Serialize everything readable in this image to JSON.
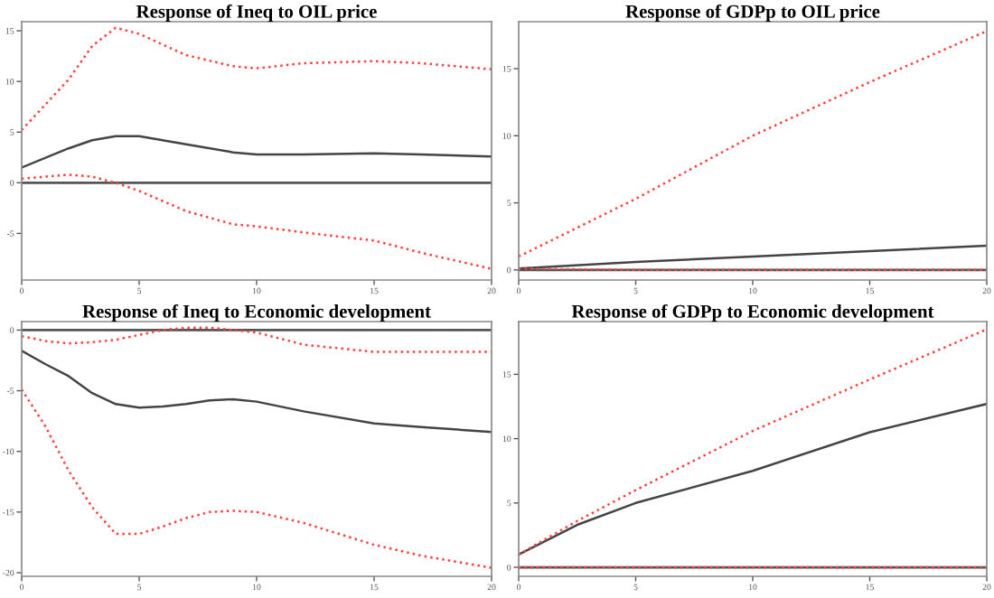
{
  "chart_data": [
    {
      "type": "line",
      "title": "Response of Ineq to OIL price",
      "x": [
        0,
        2,
        3,
        4,
        5,
        7,
        9,
        10,
        12,
        15,
        17,
        20
      ],
      "xlim": [
        0,
        20
      ],
      "xticks": [
        0,
        5,
        10,
        15,
        20
      ],
      "ylim": [
        -9.6,
        15.9
      ],
      "yticks": [
        -5,
        0,
        5,
        10,
        15
      ],
      "grid": false,
      "ref_lines": [
        {
          "axis": "y",
          "value": 0,
          "color": "#555555"
        }
      ],
      "series": [
        {
          "color": "#444444",
          "line_style": "solid",
          "values": [
            1.5,
            3.4,
            4.2,
            4.6,
            4.6,
            3.8,
            3.0,
            2.8,
            2.8,
            2.9,
            2.8,
            2.6
          ]
        },
        {
          "color": "#ff4040",
          "line_style": "dotted",
          "values": [
            5.2,
            10.2,
            13.5,
            15.3,
            14.7,
            12.6,
            11.5,
            11.3,
            11.8,
            12.0,
            11.8,
            11.2
          ]
        },
        {
          "color": "#ff4040",
          "line_style": "dotted",
          "values": [
            0.4,
            0.8,
            0.6,
            0.0,
            -0.8,
            -2.8,
            -4.1,
            -4.3,
            -4.9,
            -5.7,
            -6.9,
            -8.5
          ]
        }
      ]
    },
    {
      "type": "line",
      "title": "Response of GDPp to OIL price",
      "x": [
        0,
        5,
        10,
        15,
        20
      ],
      "xlim": [
        0,
        20
      ],
      "xticks": [
        0,
        5,
        10,
        15,
        20
      ],
      "ylim": [
        -0.75,
        18.5
      ],
      "yticks": [
        0,
        5,
        10,
        15
      ],
      "grid": false,
      "ref_lines": [
        {
          "axis": "y",
          "value": 0,
          "color": "#555555"
        }
      ],
      "series": [
        {
          "color": "#444444",
          "line_style": "solid",
          "values": [
            0.1,
            0.6,
            1.0,
            1.4,
            1.8
          ]
        },
        {
          "color": "#ff4040",
          "line_style": "dotted",
          "values": [
            1.0,
            5.3,
            10.0,
            14.0,
            17.8
          ]
        },
        {
          "color": "#ff4040",
          "line_style": "dotted",
          "values": [
            0.1,
            0.0,
            0.0,
            0.0,
            0.0
          ]
        }
      ]
    },
    {
      "type": "line",
      "title": "Response of Ineq to Economic development",
      "x": [
        0,
        1,
        2,
        3,
        4,
        5,
        6,
        7,
        8,
        9,
        10,
        12,
        15,
        17,
        20
      ],
      "xlim": [
        0,
        20
      ],
      "xticks": [
        0,
        5,
        10,
        15,
        20
      ],
      "ylim": [
        -20.3,
        0.7
      ],
      "yticks": [
        -20,
        -15,
        -10,
        -5,
        0
      ],
      "grid": false,
      "ref_lines": [
        {
          "axis": "y",
          "value": 0,
          "color": "#555555"
        }
      ],
      "series": [
        {
          "color": "#444444",
          "line_style": "solid",
          "values": [
            -1.7,
            -2.8,
            -3.8,
            -5.2,
            -6.1,
            -6.4,
            -6.3,
            -6.1,
            -5.8,
            -5.7,
            -5.9,
            -6.7,
            -7.7,
            -8.0,
            -8.4
          ]
        },
        {
          "color": "#ff4040",
          "line_style": "dotted",
          "values": [
            -0.5,
            -0.9,
            -1.1,
            -1.0,
            -0.8,
            -0.4,
            0.0,
            0.2,
            0.2,
            0.0,
            -0.2,
            -1.2,
            -1.8,
            -1.8,
            -1.8
          ]
        },
        {
          "color": "#ff4040",
          "line_style": "dotted",
          "values": [
            -4.9,
            -7.9,
            -11.6,
            -14.6,
            -16.8,
            -16.8,
            -16.2,
            -15.5,
            -15.0,
            -14.9,
            -15.0,
            -15.9,
            -17.7,
            -18.6,
            -19.6
          ]
        }
      ]
    },
    {
      "type": "line",
      "title": "Response of GDPp to Economic development",
      "x": [
        0,
        2.5,
        5,
        10,
        15,
        20
      ],
      "xlim": [
        0,
        20
      ],
      "xticks": [
        0,
        5,
        10,
        15,
        20
      ],
      "ylim": [
        -0.7,
        19.1
      ],
      "yticks": [
        0,
        5,
        10,
        15
      ],
      "grid": false,
      "ref_lines": [
        {
          "axis": "y",
          "value": 0,
          "color": "#555555"
        }
      ],
      "series": [
        {
          "color": "#444444",
          "line_style": "solid",
          "values": [
            1.0,
            3.3,
            5.0,
            7.5,
            10.5,
            12.7
          ]
        },
        {
          "color": "#ff4040",
          "line_style": "dotted",
          "values": [
            1.0,
            3.6,
            6.0,
            10.6,
            14.6,
            18.5
          ]
        },
        {
          "color": "#ff4040",
          "line_style": "dotted",
          "values": [
            0.0,
            0.0,
            0.0,
            0.0,
            0.0,
            0.0
          ]
        }
      ]
    }
  ]
}
